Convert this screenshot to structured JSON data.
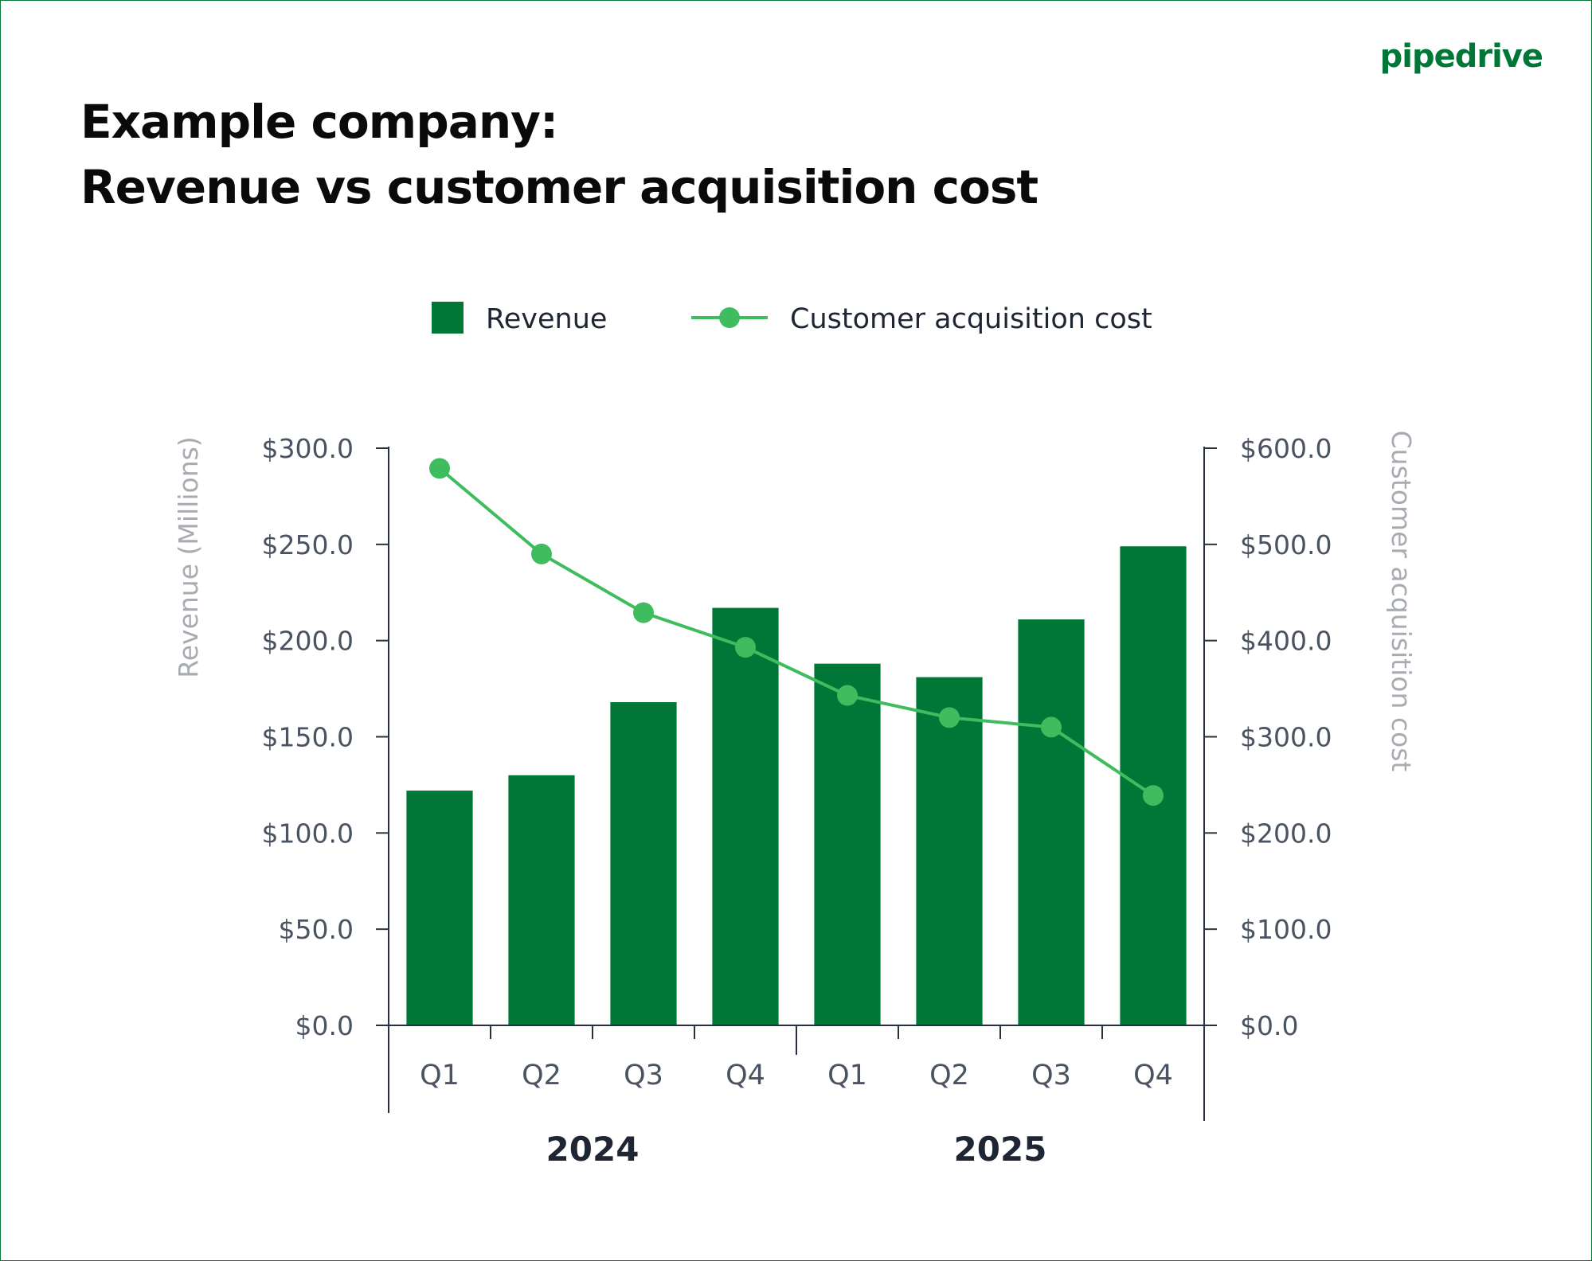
{
  "brand": "pipedrive",
  "title_line1": "Example company:",
  "title_line2": "Revenue vs customer acquisition cost",
  "chart_data": {
    "type": "bar+line",
    "categories": [
      "Q1",
      "Q2",
      "Q3",
      "Q4",
      "Q1",
      "Q2",
      "Q3",
      "Q4"
    ],
    "groups": [
      {
        "label": "2024",
        "span": [
          0,
          3
        ]
      },
      {
        "label": "2025",
        "span": [
          4,
          7
        ]
      }
    ],
    "series": [
      {
        "name": "Revenue",
        "type": "bar",
        "axis": "left",
        "color": "#017737",
        "values": [
          122,
          130,
          168,
          217,
          188,
          181,
          211,
          249
        ]
      },
      {
        "name": "Customer acquisition cost",
        "type": "line",
        "axis": "right",
        "color": "#3fbd5e",
        "values": [
          579,
          490,
          429,
          393,
          343,
          320,
          310,
          239
        ]
      }
    ],
    "left_axis": {
      "label": "Revenue (Millions)",
      "ylim": [
        0,
        300
      ],
      "ticks": [
        "$0.0",
        "$50.0",
        "$100.0",
        "$150.0",
        "$200.0",
        "$250.0",
        "$300.0"
      ]
    },
    "right_axis": {
      "label": "Customer acquisition cost",
      "ylim": [
        0,
        600
      ],
      "ticks": [
        "$0.0",
        "$100.0",
        "$200.0",
        "$300.0",
        "$400.0",
        "$500.0",
        "$600.0"
      ]
    },
    "legend": "top",
    "grid": false
  }
}
